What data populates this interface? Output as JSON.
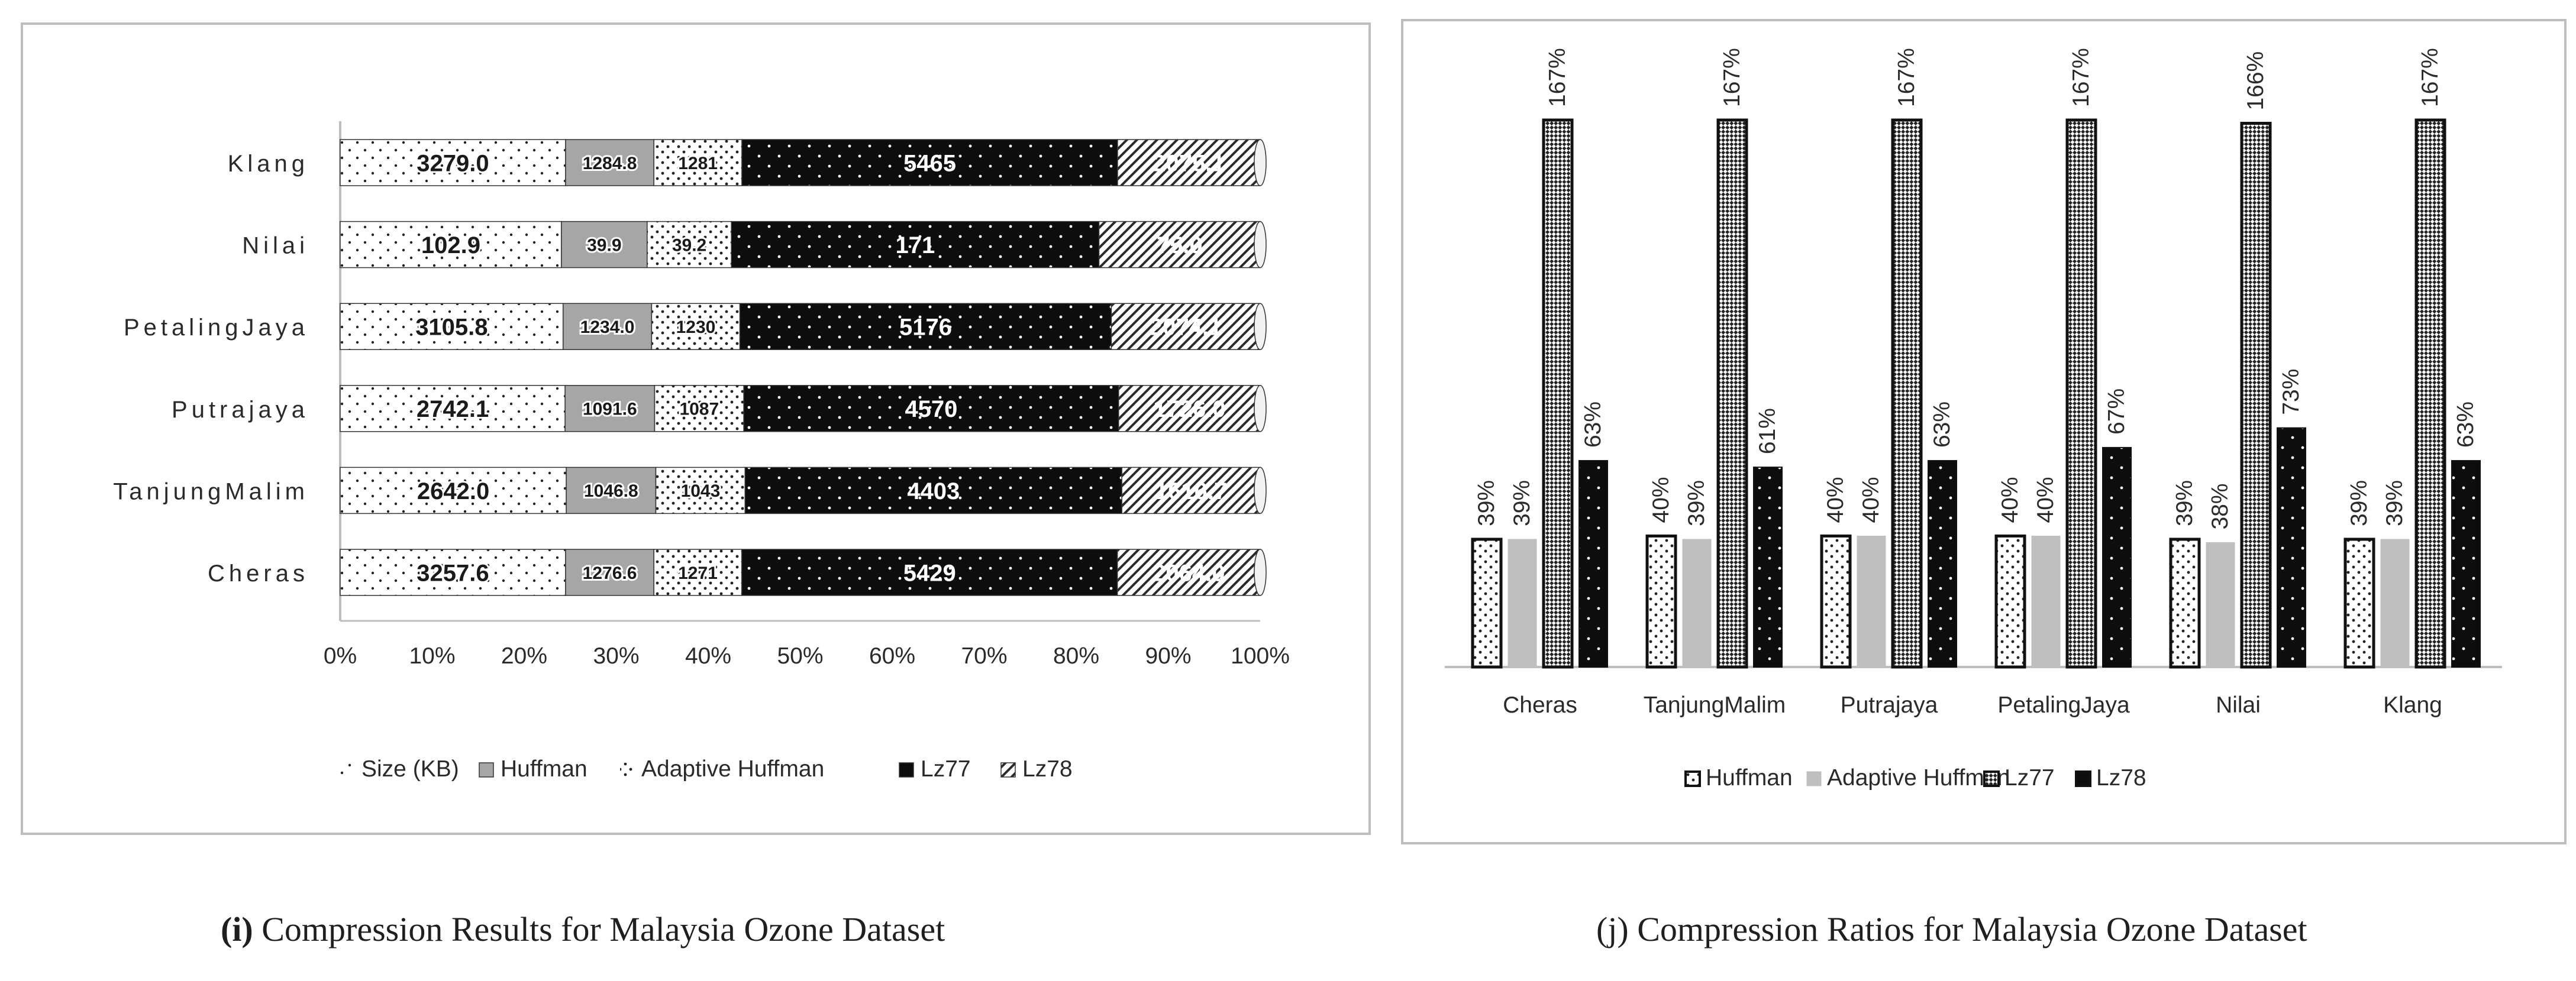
{
  "chart_data": [
    {
      "type": "bar",
      "orientation": "horizontal",
      "stacked": "percent",
      "categories": [
        "Cheras",
        "TanjungMalim",
        "Putrajaya",
        "PetalingJaya",
        "Nilai",
        "Klang"
      ],
      "series": [
        {
          "name": "Size (KB)",
          "values": [
            3257.6,
            2642.0,
            2742.1,
            3105.8,
            102.9,
            3279.0
          ]
        },
        {
          "name": "Huffman",
          "values": [
            1276.6,
            1046.8,
            1091.6,
            1234.0,
            39.9,
            1284.8
          ]
        },
        {
          "name": "Adaptive Huffman",
          "values": [
            1271,
            1043,
            1087,
            1230,
            39.2,
            1281
          ]
        },
        {
          "name": "Lz77",
          "values": [
            5429,
            4403,
            4570,
            5176,
            171,
            5465
          ]
        },
        {
          "name": "Lz78",
          "values": [
            2064.0,
            1616.7,
            1726.0,
            2074.1,
            75.0,
            2075.1
          ]
        }
      ],
      "data_labels": [
        [
          "3257.6",
          "1276.6",
          "1271",
          "5429",
          "2064.0"
        ],
        [
          "2642.0",
          "1046.8",
          "1043",
          "4403",
          "1616.7"
        ],
        [
          "2742.1",
          "1091.6",
          "1087",
          "4570",
          "1726.0"
        ],
        [
          "3105.8",
          "1234.0",
          "1230",
          "5176",
          "2074.1"
        ],
        [
          "102.9",
          "39.9",
          "39.2",
          "171",
          "75.0"
        ],
        [
          "3279.0",
          "1284.8",
          "1281",
          "5465",
          "2075.1"
        ]
      ],
      "x_ticks": [
        "0%",
        "10%",
        "20%",
        "30%",
        "40%",
        "50%",
        "60%",
        "70%",
        "80%",
        "90%",
        "100%"
      ],
      "xlim": [
        0,
        100
      ],
      "legend": "bottom",
      "grid": false,
      "colors": [
        "#ffffff",
        "#a6a6a6",
        "#ffffff",
        "#0d0d0d",
        "#ffffff"
      ]
    },
    {
      "type": "bar",
      "categories": [
        "Cheras",
        "TanjungMalim",
        "Putrajaya",
        "PetalingJaya",
        "Nilai",
        "Klang"
      ],
      "series": [
        {
          "name": "Huffman",
          "values": [
            39,
            40,
            40,
            40,
            39,
            39
          ]
        },
        {
          "name": "Adaptive Huffman",
          "values": [
            39,
            39,
            40,
            40,
            38,
            39
          ]
        },
        {
          "name": "Lz77",
          "values": [
            167,
            167,
            167,
            167,
            166,
            167
          ]
        },
        {
          "name": "Lz78",
          "values": [
            63,
            61,
            63,
            67,
            73,
            63
          ]
        }
      ],
      "data_labels": [
        [
          "39%",
          "39%",
          "167%",
          "63%"
        ],
        [
          "40%",
          "39%",
          "167%",
          "61%"
        ],
        [
          "40%",
          "40%",
          "167%",
          "63%"
        ],
        [
          "40%",
          "40%",
          "167%",
          "67%"
        ],
        [
          "39%",
          "38%",
          "166%",
          "73%"
        ],
        [
          "39%",
          "39%",
          "167%",
          "63%"
        ]
      ],
      "ylim": [
        0,
        167
      ],
      "legend": "bottom",
      "grid": false,
      "colors": [
        "#ffffff",
        "#bfbfbf",
        "#ffffff",
        "#0d0d0d"
      ]
    }
  ],
  "captions": {
    "i_letter": "(i)",
    "i_text": " Compression Results for Malaysia Ozone Dataset",
    "j_letter": "(j)",
    "j_text": " Compression Ratios for Malaysia Ozone Dataset"
  }
}
